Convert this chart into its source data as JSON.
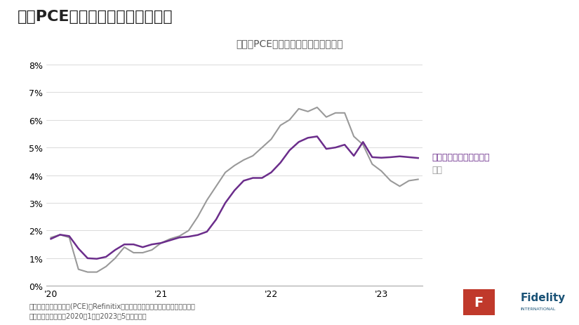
{
  "title": "コアPCEインフレ率は鈍化が遅い",
  "subtitle": "米国のPCEインフレ率（前年同月比）",
  "footnote1": "（出所）米経済分析局(PCE)、Refinitix、フィデリティ・インスティテュート。",
  "footnote2": "（注）データ期間：2020年1月〜2023年5月、月次。",
  "legend_core": "食品とエネルギーを除く",
  "legend_total": "総合",
  "bg_color": "#ffffff",
  "title_color": "#333333",
  "subtitle_color": "#555555",
  "core_color": "#6b2d8b",
  "total_color": "#999999",
  "ylim": [
    0,
    0.08
  ],
  "yticks": [
    0,
    0.01,
    0.02,
    0.03,
    0.04,
    0.05,
    0.06,
    0.07,
    0.08
  ],
  "ytick_labels": [
    "0%",
    "1%",
    "2%",
    "3%",
    "4%",
    "5%",
    "6%",
    "7%",
    "8%"
  ],
  "core_pce": [
    1.7,
    1.85,
    1.8,
    1.35,
    1.0,
    0.98,
    1.05,
    1.3,
    1.5,
    1.5,
    1.4,
    1.5,
    1.55,
    1.65,
    1.75,
    1.78,
    1.84,
    1.96,
    2.4,
    3.0,
    3.45,
    3.8,
    3.9,
    3.9,
    4.1,
    4.45,
    4.9,
    5.2,
    5.35,
    5.4,
    4.95,
    5.0,
    5.1,
    4.7,
    5.2,
    4.65,
    4.63,
    4.65,
    4.68,
    4.65,
    4.62
  ],
  "total_pce": [
    1.75,
    1.85,
    1.75,
    0.6,
    0.5,
    0.5,
    0.7,
    1.0,
    1.4,
    1.2,
    1.2,
    1.3,
    1.55,
    1.7,
    1.8,
    2.0,
    2.5,
    3.1,
    3.6,
    4.1,
    4.35,
    4.55,
    4.7,
    5.0,
    5.3,
    5.8,
    6.0,
    6.4,
    6.3,
    6.45,
    6.1,
    6.25,
    6.25,
    5.4,
    5.1,
    4.4,
    4.15,
    3.8,
    3.6,
    3.8,
    3.85
  ],
  "xtick_positions": [
    0,
    12,
    24,
    36
  ],
  "xtick_labels": [
    "'20",
    "'21",
    "'22",
    "'23"
  ]
}
